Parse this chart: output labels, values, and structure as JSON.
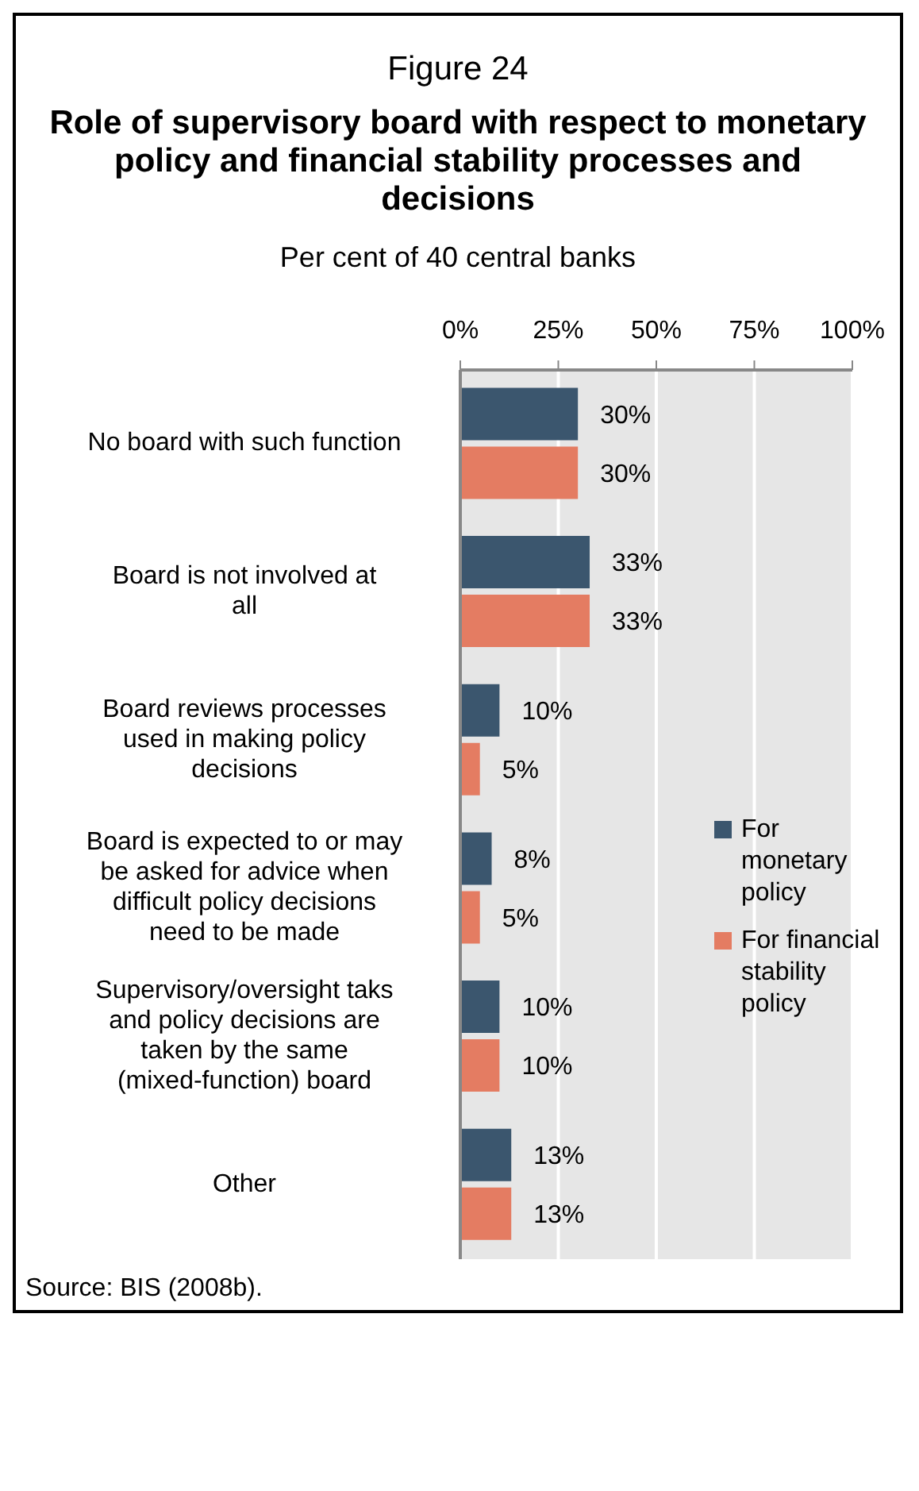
{
  "chart_data": {
    "type": "bar",
    "orientation": "horizontal",
    "title": "Figure 24",
    "subtitle": "Role of supervisory board with respect to monetary policy and financial stability processes and decisions",
    "xlabel": "Per cent of 40 central banks",
    "categories": [
      "No board with such function",
      "Board is not involved at all",
      "Board reviews processes used in making policy decisions",
      "Board is expected to or may be asked for advice when difficult policy decisions need to be made",
      "Supervisory/oversight taks and policy decisions are taken by the same (mixed-function) board",
      "Other"
    ],
    "series": [
      {
        "name": "For monetary policy",
        "color": "#3b566e",
        "values": [
          30,
          33,
          10,
          8,
          10,
          13
        ],
        "value_labels": [
          "30%",
          "33%",
          "10%",
          "8%",
          "10%",
          "13%"
        ]
      },
      {
        "name": "For financial stability policy",
        "color": "#e47c62",
        "values": [
          30,
          33,
          5,
          5,
          10,
          13
        ],
        "value_labels": [
          "30%",
          "33%",
          "5%",
          "5%",
          "10%",
          "13%"
        ]
      }
    ],
    "xlim": [
      0,
      100
    ],
    "xticks": [
      {
        "value": 0,
        "label": "0%"
      },
      {
        "value": 25,
        "label": "25%"
      },
      {
        "value": 50,
        "label": "50%"
      },
      {
        "value": 75,
        "label": "75%"
      },
      {
        "value": 100,
        "label": "100%"
      }
    ],
    "grid": "x",
    "legend": "right",
    "annotations": [
      "Source: BIS (2008b)."
    ]
  }
}
